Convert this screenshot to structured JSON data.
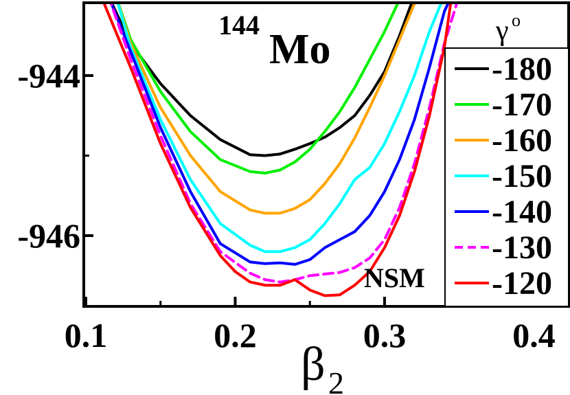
{
  "chart_data": {
    "type": "line",
    "title": "Mo",
    "title_mass_number": "144",
    "xlabel": "β",
    "xlabel_subscript": "2",
    "ylabel": "",
    "xlim": [
      0.1,
      0.42
    ],
    "ylim": [
      -946.9,
      -943.0
    ],
    "x_ticks": [
      0.1,
      0.2,
      0.3,
      0.4
    ],
    "x_tick_labels": [
      "0.1",
      "0.2",
      "0.3",
      "0.4"
    ],
    "y_ticks": [
      -944,
      -946
    ],
    "y_tick_labels": [
      "-944",
      "-946"
    ],
    "legend_title": "γ",
    "legend_title_superscript": "o",
    "legend_position": "right",
    "annotation": "NSM",
    "series": [
      {
        "name": "-180",
        "color": "#000000",
        "dash": false,
        "x": [
          0.115,
          0.13,
          0.15,
          0.17,
          0.19,
          0.21,
          0.22,
          0.23,
          0.24,
          0.25,
          0.26,
          0.27,
          0.28,
          0.29,
          0.3,
          0.31,
          0.32
        ],
        "y": [
          -943.0,
          -943.6,
          -944.1,
          -944.5,
          -944.8,
          -944.99,
          -945.0,
          -944.98,
          -944.92,
          -944.85,
          -944.77,
          -944.65,
          -944.5,
          -944.25,
          -943.95,
          -943.5,
          -943.0
        ]
      },
      {
        "name": "-170",
        "color": "#00ee00",
        "dash": false,
        "x": [
          0.12,
          0.13,
          0.15,
          0.17,
          0.19,
          0.21,
          0.22,
          0.23,
          0.24,
          0.25,
          0.26,
          0.27,
          0.28,
          0.29,
          0.3,
          0.31,
          0.315
        ],
        "y": [
          -943.0,
          -943.55,
          -944.2,
          -944.7,
          -945.05,
          -945.2,
          -945.22,
          -945.18,
          -945.08,
          -944.92,
          -944.7,
          -944.45,
          -944.15,
          -943.8,
          -943.45,
          -943.05,
          -943.0
        ]
      },
      {
        "name": "-160",
        "color": "#ffa500",
        "dash": false,
        "x": [
          0.12,
          0.13,
          0.15,
          0.17,
          0.19,
          0.21,
          0.22,
          0.23,
          0.24,
          0.25,
          0.26,
          0.27,
          0.28,
          0.29,
          0.3,
          0.31,
          0.32,
          0.33
        ],
        "y": [
          -943.0,
          -943.6,
          -944.4,
          -945.0,
          -945.45,
          -945.68,
          -945.72,
          -945.72,
          -945.66,
          -945.55,
          -945.35,
          -945.1,
          -944.78,
          -944.4,
          -944.0,
          -943.55,
          -943.1,
          -943.0
        ]
      },
      {
        "name": "-150",
        "color": "#00ffff",
        "dash": false,
        "x": [
          0.12,
          0.13,
          0.15,
          0.17,
          0.19,
          0.21,
          0.22,
          0.23,
          0.24,
          0.25,
          0.26,
          0.27,
          0.28,
          0.29,
          0.3,
          0.31,
          0.32,
          0.33,
          0.34
        ],
        "y": [
          -943.0,
          -943.65,
          -944.55,
          -945.3,
          -945.85,
          -946.12,
          -946.2,
          -946.2,
          -946.15,
          -946.05,
          -945.85,
          -945.6,
          -945.3,
          -945.15,
          -944.85,
          -944.45,
          -944.0,
          -943.45,
          -943.0
        ]
      },
      {
        "name": "-140",
        "color": "#0000ff",
        "dash": false,
        "x": [
          0.115,
          0.13,
          0.15,
          0.17,
          0.19,
          0.21,
          0.22,
          0.23,
          0.24,
          0.25,
          0.26,
          0.27,
          0.28,
          0.29,
          0.3,
          0.31,
          0.32,
          0.33,
          0.34,
          0.345
        ],
        "y": [
          -943.0,
          -943.7,
          -944.65,
          -945.45,
          -946.1,
          -946.33,
          -946.35,
          -946.34,
          -946.36,
          -946.3,
          -946.15,
          -946.05,
          -945.95,
          -945.75,
          -945.45,
          -945.05,
          -944.55,
          -943.9,
          -943.2,
          -943.0
        ]
      },
      {
        "name": "-130",
        "color": "#ff00ff",
        "dash": true,
        "x": [
          0.115,
          0.13,
          0.15,
          0.17,
          0.19,
          0.21,
          0.22,
          0.23,
          0.24,
          0.25,
          0.26,
          0.27,
          0.28,
          0.29,
          0.3,
          0.31,
          0.32,
          0.33,
          0.34,
          0.35
        ],
        "y": [
          -943.0,
          -943.8,
          -944.75,
          -945.6,
          -946.2,
          -946.47,
          -946.55,
          -946.58,
          -946.55,
          -946.5,
          -946.48,
          -946.46,
          -946.4,
          -946.28,
          -946.05,
          -945.65,
          -945.1,
          -944.4,
          -943.6,
          -943.0
        ]
      },
      {
        "name": "-120",
        "color": "#ff0000",
        "dash": false,
        "x": [
          0.11,
          0.13,
          0.15,
          0.17,
          0.19,
          0.2,
          0.21,
          0.22,
          0.23,
          0.24,
          0.25,
          0.26,
          0.27,
          0.28,
          0.29,
          0.3,
          0.31,
          0.32,
          0.33,
          0.34,
          0.345
        ],
        "y": [
          -943.0,
          -943.9,
          -944.85,
          -945.65,
          -946.25,
          -946.45,
          -946.58,
          -946.62,
          -946.62,
          -946.55,
          -946.68,
          -946.75,
          -946.74,
          -946.62,
          -946.45,
          -946.15,
          -945.75,
          -945.2,
          -944.5,
          -943.65,
          -943.0
        ]
      }
    ]
  }
}
